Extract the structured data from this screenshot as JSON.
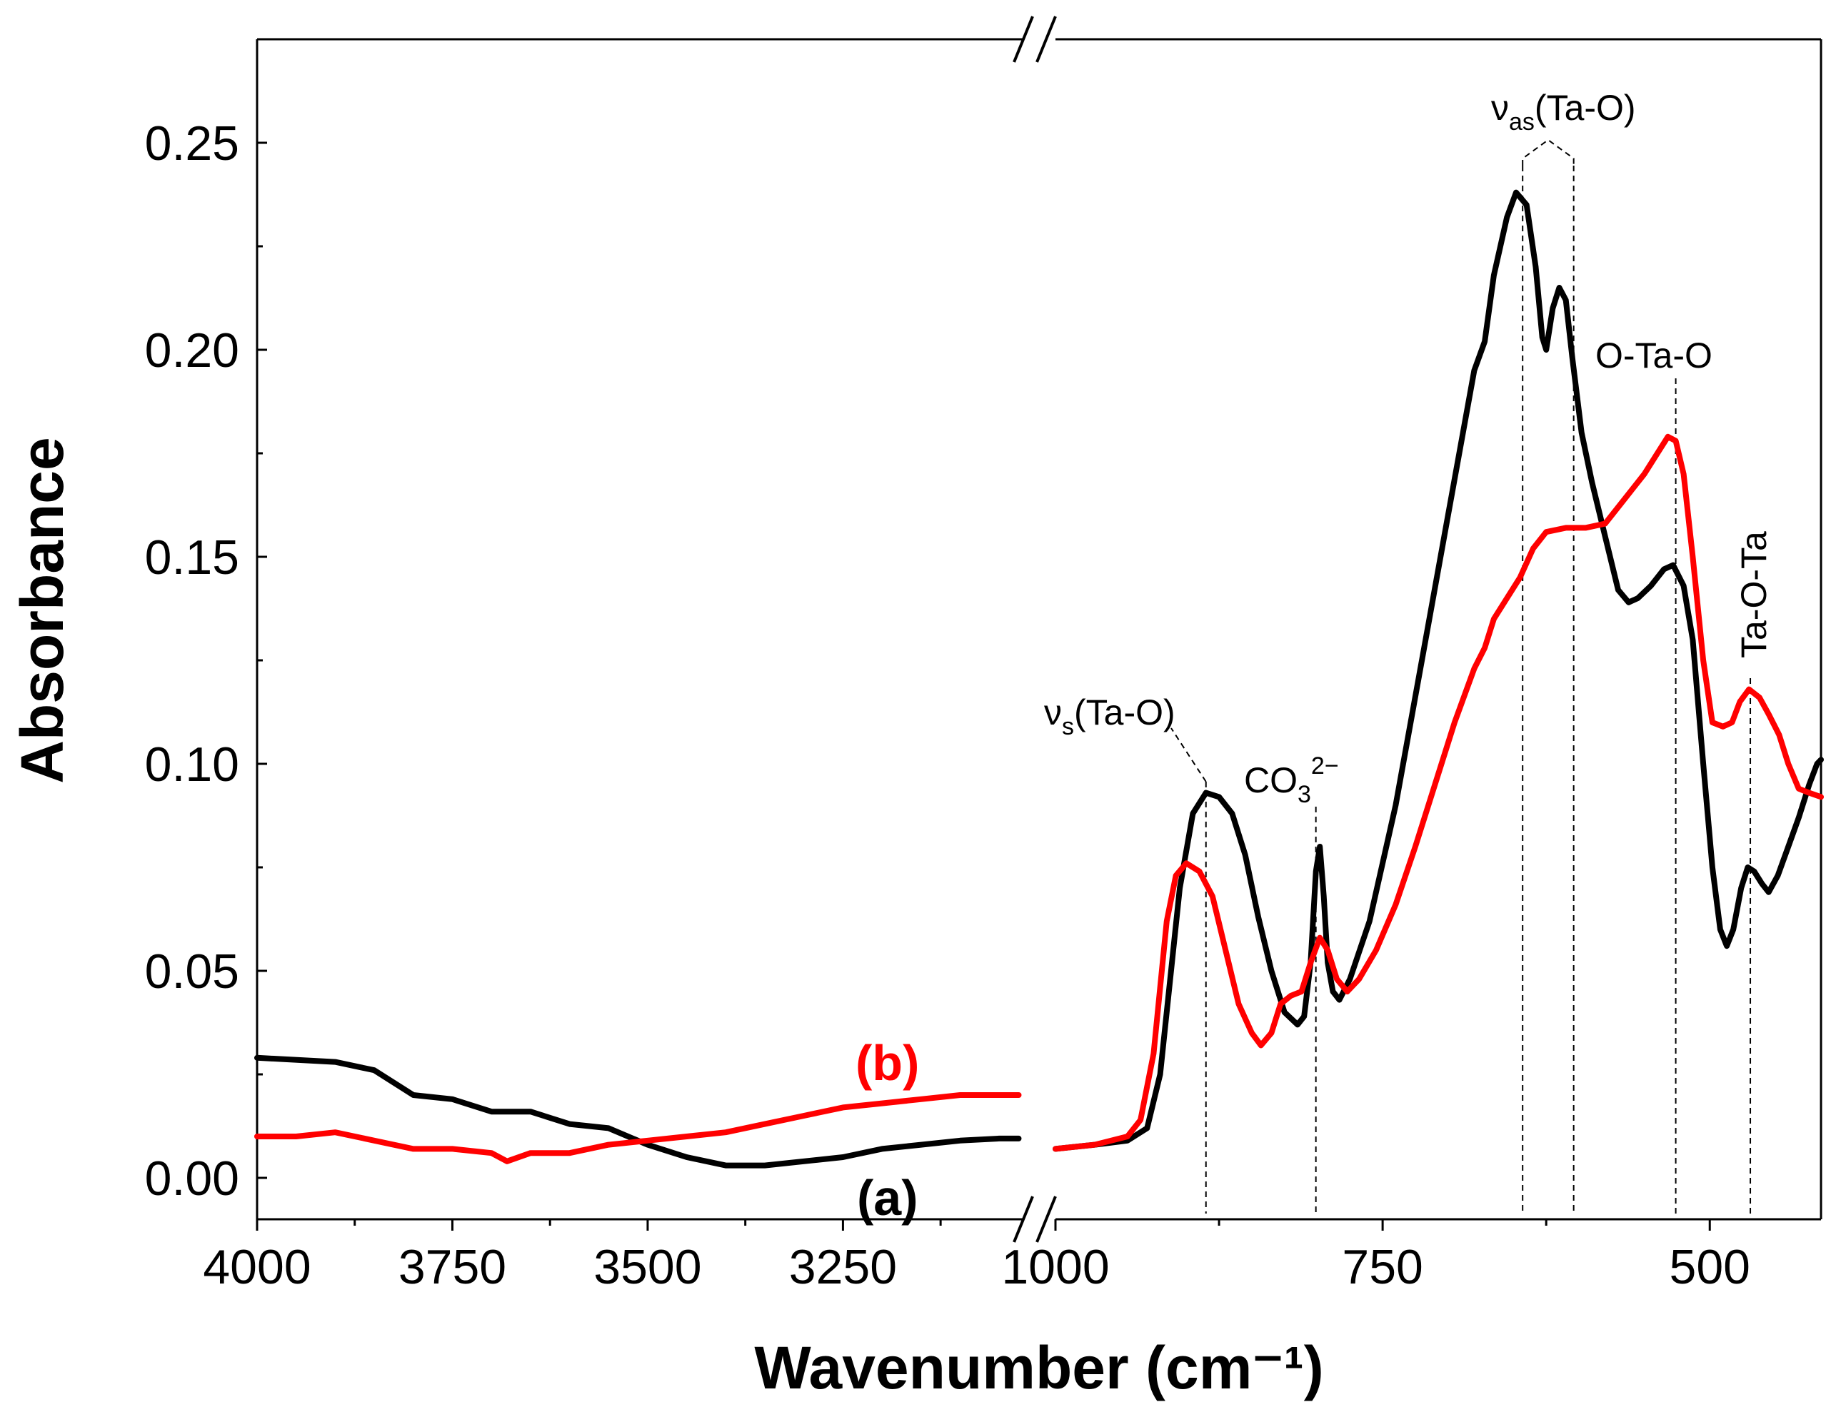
{
  "chart_data": {
    "type": "line",
    "title": "",
    "xlabel": "Wavenumber (cm⁻¹)",
    "ylabel": "Absorbance",
    "ylim": [
      -0.01,
      0.275
    ],
    "x_axis_break": true,
    "x_segments": [
      {
        "xlim": [
          4000,
          3020
        ],
        "ticks": [
          "4000",
          "3750",
          "3500",
          "3250"
        ],
        "tick_values": [
          4000,
          3750,
          3500,
          3250
        ]
      },
      {
        "xlim": [
          1000,
          415
        ],
        "ticks": [
          "1000",
          "750",
          "500"
        ],
        "tick_values": [
          1000,
          750,
          500
        ]
      }
    ],
    "yticks": [
      "0.00",
      "0.05",
      "0.10",
      "0.15",
      "0.20",
      "0.25"
    ],
    "ytick_values": [
      0.0,
      0.05,
      0.1,
      0.15,
      0.2,
      0.25
    ],
    "series": [
      {
        "name": "(a)",
        "color": "#000000",
        "high": [
          [
            4000,
            0.029
          ],
          [
            3900,
            0.028
          ],
          [
            3850,
            0.026
          ],
          [
            3800,
            0.02
          ],
          [
            3750,
            0.019
          ],
          [
            3700,
            0.016
          ],
          [
            3650,
            0.016
          ],
          [
            3600,
            0.013
          ],
          [
            3550,
            0.012
          ],
          [
            3500,
            0.008
          ],
          [
            3450,
            0.005
          ],
          [
            3400,
            0.003
          ],
          [
            3350,
            0.003
          ],
          [
            3300,
            0.004
          ],
          [
            3250,
            0.005
          ],
          [
            3200,
            0.007
          ],
          [
            3150,
            0.008
          ],
          [
            3100,
            0.009
          ],
          [
            3050,
            0.0095
          ],
          [
            3025,
            0.0095
          ]
        ],
        "low": [
          [
            1000,
            0.007
          ],
          [
            970,
            0.008
          ],
          [
            945,
            0.009
          ],
          [
            930,
            0.012
          ],
          [
            920,
            0.025
          ],
          [
            905,
            0.07
          ],
          [
            895,
            0.088
          ],
          [
            885,
            0.093
          ],
          [
            875,
            0.092
          ],
          [
            865,
            0.088
          ],
          [
            855,
            0.078
          ],
          [
            845,
            0.063
          ],
          [
            835,
            0.05
          ],
          [
            825,
            0.04
          ],
          [
            815,
            0.037
          ],
          [
            810,
            0.039
          ],
          [
            805,
            0.052
          ],
          [
            801,
            0.074
          ],
          [
            798,
            0.08
          ],
          [
            795,
            0.068
          ],
          [
            792,
            0.052
          ],
          [
            788,
            0.045
          ],
          [
            783,
            0.043
          ],
          [
            775,
            0.048
          ],
          [
            760,
            0.062
          ],
          [
            740,
            0.09
          ],
          [
            720,
            0.125
          ],
          [
            700,
            0.16
          ],
          [
            680,
            0.195
          ],
          [
            672,
            0.202
          ],
          [
            665,
            0.218
          ],
          [
            655,
            0.232
          ],
          [
            648,
            0.238
          ],
          [
            640,
            0.235
          ],
          [
            633,
            0.22
          ],
          [
            628,
            0.203
          ],
          [
            625,
            0.2
          ],
          [
            620,
            0.21
          ],
          [
            615,
            0.215
          ],
          [
            610,
            0.212
          ],
          [
            605,
            0.198
          ],
          [
            598,
            0.18
          ],
          [
            590,
            0.168
          ],
          [
            580,
            0.155
          ],
          [
            570,
            0.142
          ],
          [
            562,
            0.139
          ],
          [
            555,
            0.14
          ],
          [
            545,
            0.143
          ],
          [
            535,
            0.147
          ],
          [
            528,
            0.148
          ],
          [
            520,
            0.143
          ],
          [
            513,
            0.13
          ],
          [
            505,
            0.1
          ],
          [
            498,
            0.075
          ],
          [
            492,
            0.06
          ],
          [
            487,
            0.056
          ],
          [
            482,
            0.06
          ],
          [
            476,
            0.07
          ],
          [
            471,
            0.075
          ],
          [
            466,
            0.074
          ],
          [
            460,
            0.071
          ],
          [
            455,
            0.069
          ],
          [
            448,
            0.073
          ],
          [
            440,
            0.08
          ],
          [
            432,
            0.087
          ],
          [
            424,
            0.095
          ],
          [
            418,
            0.1
          ],
          [
            415,
            0.101
          ]
        ]
      },
      {
        "name": "(b)",
        "color": "#ff0000",
        "high": [
          [
            4000,
            0.01
          ],
          [
            3950,
            0.01
          ],
          [
            3900,
            0.011
          ],
          [
            3850,
            0.009
          ],
          [
            3800,
            0.007
          ],
          [
            3750,
            0.007
          ],
          [
            3700,
            0.006
          ],
          [
            3680,
            0.004
          ],
          [
            3650,
            0.006
          ],
          [
            3600,
            0.006
          ],
          [
            3550,
            0.008
          ],
          [
            3500,
            0.009
          ],
          [
            3450,
            0.01
          ],
          [
            3400,
            0.011
          ],
          [
            3350,
            0.013
          ],
          [
            3300,
            0.015
          ],
          [
            3250,
            0.017
          ],
          [
            3200,
            0.018
          ],
          [
            3150,
            0.019
          ],
          [
            3100,
            0.02
          ],
          [
            3050,
            0.02
          ],
          [
            3025,
            0.02
          ]
        ],
        "low": [
          [
            1000,
            0.007
          ],
          [
            970,
            0.008
          ],
          [
            945,
            0.01
          ],
          [
            935,
            0.014
          ],
          [
            925,
            0.03
          ],
          [
            915,
            0.062
          ],
          [
            908,
            0.073
          ],
          [
            900,
            0.076
          ],
          [
            890,
            0.074
          ],
          [
            880,
            0.068
          ],
          [
            870,
            0.055
          ],
          [
            860,
            0.042
          ],
          [
            850,
            0.035
          ],
          [
            843,
            0.032
          ],
          [
            835,
            0.035
          ],
          [
            828,
            0.042
          ],
          [
            820,
            0.044
          ],
          [
            812,
            0.045
          ],
          [
            805,
            0.052
          ],
          [
            798,
            0.058
          ],
          [
            792,
            0.055
          ],
          [
            785,
            0.048
          ],
          [
            777,
            0.045
          ],
          [
            768,
            0.048
          ],
          [
            755,
            0.055
          ],
          [
            740,
            0.066
          ],
          [
            725,
            0.08
          ],
          [
            710,
            0.095
          ],
          [
            695,
            0.11
          ],
          [
            680,
            0.123
          ],
          [
            672,
            0.128
          ],
          [
            665,
            0.135
          ],
          [
            655,
            0.14
          ],
          [
            645,
            0.145
          ],
          [
            635,
            0.152
          ],
          [
            625,
            0.156
          ],
          [
            610,
            0.157
          ],
          [
            595,
            0.157
          ],
          [
            580,
            0.158
          ],
          [
            570,
            0.162
          ],
          [
            560,
            0.166
          ],
          [
            550,
            0.17
          ],
          [
            540,
            0.175
          ],
          [
            532,
            0.179
          ],
          [
            526,
            0.178
          ],
          [
            520,
            0.17
          ],
          [
            513,
            0.15
          ],
          [
            505,
            0.125
          ],
          [
            498,
            0.11
          ],
          [
            490,
            0.109
          ],
          [
            483,
            0.11
          ],
          [
            477,
            0.115
          ],
          [
            470,
            0.118
          ],
          [
            462,
            0.116
          ],
          [
            455,
            0.112
          ],
          [
            447,
            0.107
          ],
          [
            440,
            0.1
          ],
          [
            432,
            0.094
          ],
          [
            424,
            0.093
          ],
          [
            415,
            0.092
          ]
        ]
      }
    ],
    "curve_labels": [
      {
        "text": "(a)",
        "color": "#000000"
      },
      {
        "text": "(b)",
        "color": "#ff0000"
      }
    ],
    "annotations": [
      {
        "main": "ν",
        "sub": "s",
        "rest": "(Ta-O)",
        "lines": [
          885
        ]
      },
      {
        "main": "CO",
        "sub": "3",
        "sup": "2−",
        "rest": "",
        "lines": [
          801
        ]
      },
      {
        "main": "ν",
        "sub": "as",
        "rest": "(Ta-O)",
        "lines": [
          643,
          604
        ]
      },
      {
        "main": "O-Ta-O",
        "sub": "",
        "rest": "",
        "lines": [
          526
        ]
      },
      {
        "main": "Ta-O-Ta",
        "sub": "",
        "rest": "",
        "lines": [
          469
        ],
        "rotated": true
      }
    ]
  }
}
